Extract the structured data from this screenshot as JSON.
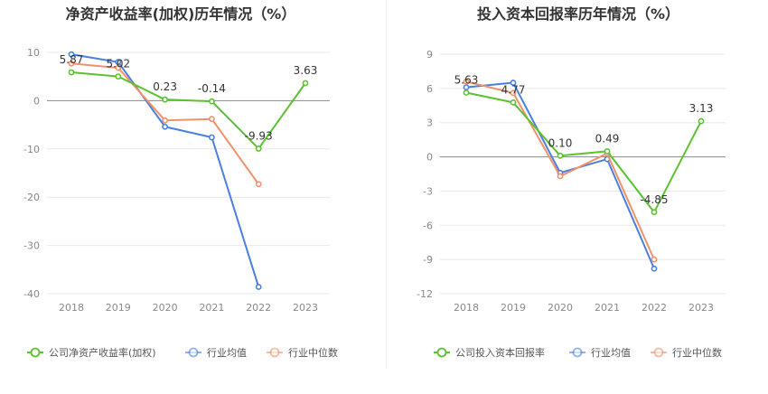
{
  "chart_data": [
    {
      "type": "line",
      "title": "净资产收益率(加权)历年情况（%）",
      "xlabel": "",
      "ylabel": "",
      "categories": [
        "2018",
        "2019",
        "2020",
        "2021",
        "2022",
        "2023"
      ],
      "ylim": [
        -40,
        10
      ],
      "yticks": [
        10,
        0,
        -10,
        -20,
        -30,
        -40
      ],
      "grid": true,
      "legend_position": "bottom-left",
      "series": [
        {
          "name": "公司净资产收益率(加权)",
          "color": "#5cc130",
          "values": [
            5.87,
            5.02,
            0.23,
            -0.14,
            -9.93,
            3.63
          ],
          "labels": [
            "5.87",
            "5.02",
            "0.23",
            "-0.14",
            "-9.93",
            "3.63"
          ]
        },
        {
          "name": "行业均值",
          "color": "#4a7fe0",
          "values": [
            9.6,
            8.0,
            -5.4,
            -7.6,
            -38.6,
            null
          ]
        },
        {
          "name": "行业中位数",
          "color": "#f0916a",
          "values": [
            7.7,
            6.8,
            -4.1,
            -3.8,
            -17.3,
            null
          ]
        }
      ]
    },
    {
      "type": "line",
      "title": "投入资本回报率历年情况（%）",
      "xlabel": "",
      "ylabel": "",
      "categories": [
        "2018",
        "2019",
        "2020",
        "2021",
        "2022",
        "2023"
      ],
      "ylim": [
        -12,
        9
      ],
      "yticks": [
        9,
        6,
        3,
        0,
        -3,
        -6,
        -9,
        -12
      ],
      "grid": true,
      "legend_position": "bottom-left",
      "series": [
        {
          "name": "公司投入资本回报率",
          "color": "#5cc130",
          "values": [
            5.63,
            4.77,
            0.1,
            0.49,
            -4.85,
            3.13
          ],
          "labels": [
            "5.63",
            "4.77",
            "0.10",
            "0.49",
            "-4.85",
            "3.13"
          ]
        },
        {
          "name": "行业均值",
          "color": "#4a7fe0",
          "values": [
            6.1,
            6.5,
            -1.4,
            -0.2,
            -9.8,
            null
          ]
        },
        {
          "name": "行业中位数",
          "color": "#f0916a",
          "values": [
            6.6,
            5.6,
            -1.7,
            0.3,
            -9.0,
            null
          ]
        }
      ]
    }
  ]
}
